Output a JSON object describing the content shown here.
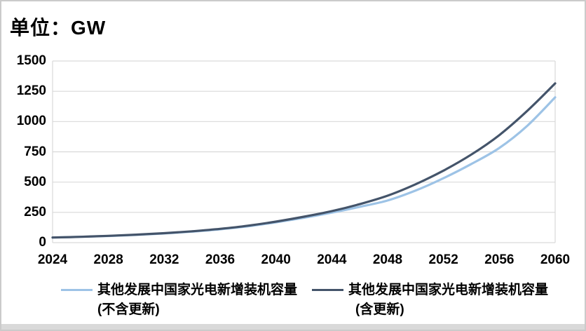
{
  "title": "单位：GW",
  "colors": {
    "series_excluding_renewal": "#9DC3E6",
    "series_including_renewal": "#44546A",
    "gridline": "#D9D9D9",
    "text": "#000000",
    "frame_border": "#CBCBCB",
    "bottom_strip": "#D9D9D9"
  },
  "chart_data": {
    "type": "line",
    "title": "单位：GW",
    "xlabel": "",
    "ylabel": "GW",
    "ylim": [
      0,
      1500
    ],
    "xlim": [
      2024,
      2060
    ],
    "y_ticks": [
      0,
      250,
      500,
      750,
      1000,
      1250,
      1500
    ],
    "x_ticks": [
      2024,
      2028,
      2032,
      2036,
      2040,
      2044,
      2048,
      2052,
      2056,
      2060
    ],
    "grid": "horizontal",
    "legend_position": "bottom",
    "x": [
      2024,
      2026,
      2028,
      2030,
      2032,
      2034,
      2036,
      2038,
      2040,
      2042,
      2044,
      2046,
      2048,
      2050,
      2052,
      2054,
      2056,
      2058,
      2060
    ],
    "series": [
      {
        "name": "其他发展中国家光电新增装机容量(不含更新)",
        "color": "#9DC3E6",
        "values": [
          42,
          48,
          55,
          64,
          76,
          91,
          110,
          135,
          168,
          205,
          248,
          296,
          348,
          430,
          532,
          650,
          782,
          965,
          1200
        ]
      },
      {
        "name": "其他发展中国家光电新增装机容量(含更新)",
        "color": "#44546A",
        "values": [
          42,
          48,
          56,
          66,
          78,
          94,
          114,
          140,
          174,
          214,
          260,
          318,
          388,
          482,
          595,
          728,
          888,
          1088,
          1315
        ]
      }
    ]
  },
  "legend": {
    "items": [
      {
        "label_line1": "其他发展中国家光电新增装机容量",
        "label_line2": "(不含更新)",
        "color": "#9DC3E6"
      },
      {
        "label_line1": "其他发展中国家光电新增装机容量",
        "label_line2": "(含更新)",
        "color": "#44546A"
      }
    ]
  }
}
